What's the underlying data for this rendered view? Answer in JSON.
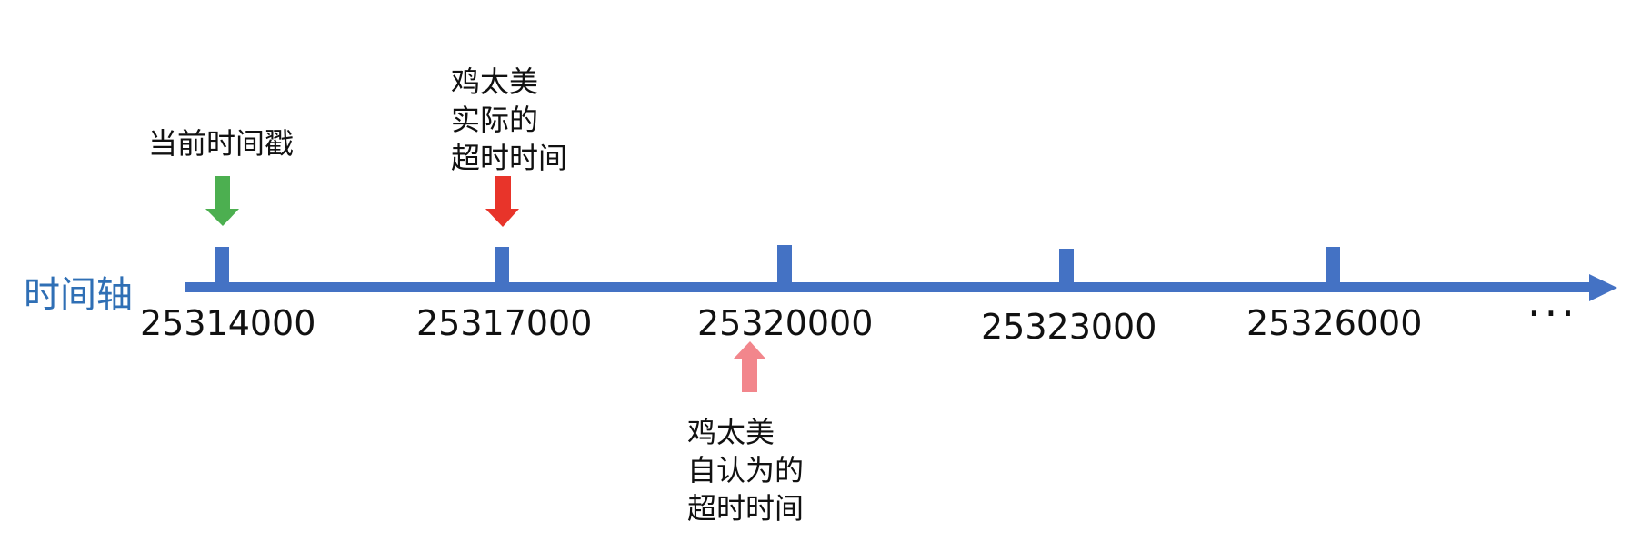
{
  "axis": {
    "label": "时间轴",
    "color": "#4472c4",
    "label_color": "#2f6fb5",
    "ticks": [
      {
        "label": "25314000"
      },
      {
        "label": "25317000"
      },
      {
        "label": "25320000"
      },
      {
        "label": "25323000"
      },
      {
        "label": "25326000"
      }
    ],
    "ellipsis": "···",
    "arrowhead_icon": "arrow-right-icon"
  },
  "markers": {
    "current_timestamp": {
      "label": "当前时间戳",
      "color": "#4caf50",
      "icon": "arrow-down-icon"
    },
    "actual_timeout": {
      "lines": [
        "鸡太美",
        "实际的",
        "超时时间"
      ],
      "color": "#e8342a",
      "icon": "arrow-down-icon"
    },
    "believed_timeout": {
      "lines": [
        "鸡太美",
        "自认为的",
        "超时时间"
      ],
      "color": "#f2868c",
      "icon": "arrow-up-icon"
    }
  }
}
